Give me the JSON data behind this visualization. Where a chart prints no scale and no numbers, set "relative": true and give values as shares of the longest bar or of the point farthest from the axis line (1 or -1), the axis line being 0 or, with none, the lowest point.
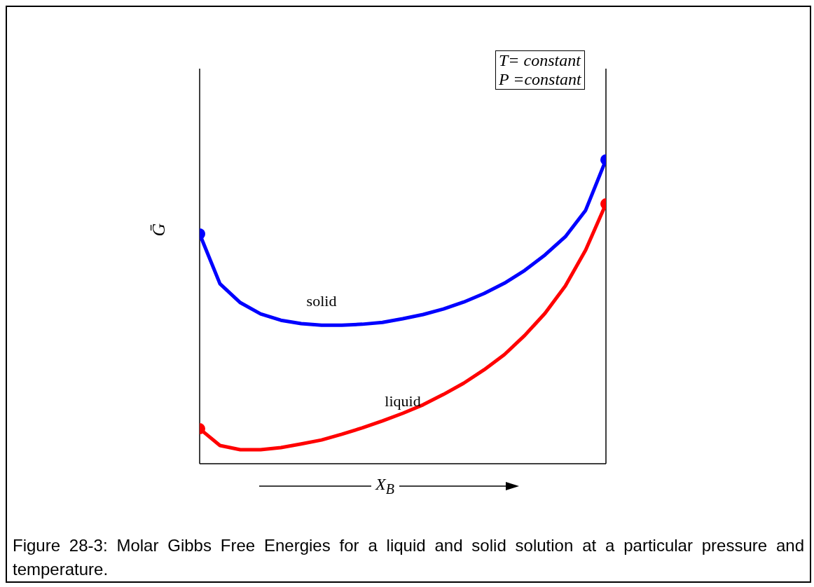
{
  "chart_data": {
    "type": "line",
    "relative": true,
    "xlabel": "X$_{B}$",
    "ylabel": "Ḡ",
    "line_style": "solid",
    "categories": [
      null,
      null,
      null,
      null,
      null,
      null,
      null,
      null,
      null,
      null,
      null,
      null,
      null,
      null,
      null,
      null,
      null,
      null,
      null,
      null,
      null
    ],
    "series": [
      {
        "name": "solid",
        "color": "#0000ff",
        "values": [
          0.756,
          0.592,
          0.53,
          0.493,
          0.472,
          0.461,
          0.456,
          0.456,
          0.459,
          0.465,
          0.477,
          0.491,
          0.509,
          0.532,
          0.56,
          0.594,
          0.636,
          0.687,
          0.747,
          0.834,
          1.0
        ]
      },
      {
        "name": "liquid",
        "color": "#ff0000",
        "values": [
          0.115,
          0.06,
          0.046,
          0.046,
          0.053,
          0.065,
          0.078,
          0.097,
          0.118,
          0.141,
          0.166,
          0.194,
          0.228,
          0.265,
          0.309,
          0.359,
          0.422,
          0.495,
          0.585,
          0.703,
          0.855
        ]
      }
    ],
    "annotations": [
      "T= constant",
      "P =constant",
      "Figure 28-3: Molar Gibbs Free Energies for a liquid and solid solution at a particular pressure and temperature."
    ]
  }
}
